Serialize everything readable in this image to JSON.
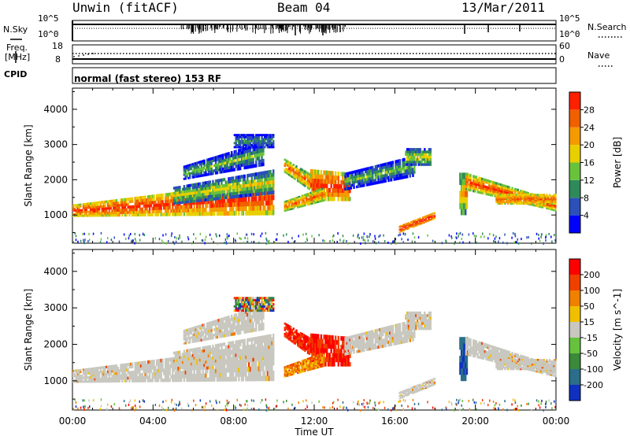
{
  "header": {
    "station": "Unwin (fitACF)",
    "beam": "Beam 04",
    "date": "13/Mar/2011"
  },
  "noise_panel": {
    "left_label": "N.Sky",
    "left_ticks": [
      "10^5",
      "10^0"
    ],
    "right_ticks": [
      "10^5",
      "10^0"
    ],
    "right_label": "N.Search"
  },
  "freq_panel": {
    "left_label_1": "Freq.",
    "left_label_2": "[MHz]",
    "left_ticks": [
      "18",
      "8"
    ],
    "right_ticks": [
      "60",
      "0"
    ],
    "right_label": "Nave"
  },
  "cpid_panel": {
    "label": "CPID",
    "text": "normal (fast stereo) 153 RF"
  },
  "chart_data": [
    {
      "type": "heatmap",
      "quantity": "Power",
      "ylabel": "Slant Range [km]",
      "xlabel": "",
      "x_range_hours": [
        0,
        24
      ],
      "ylim": [
        200,
        4600
      ],
      "yticks": [
        1000,
        2000,
        3000,
        4000
      ],
      "colorbar": {
        "label": "Power [dB]",
        "ticks": [
          "4",
          "8",
          "12",
          "16",
          "20",
          "24",
          "28"
        ],
        "colors": [
          "#0000ff",
          "#2b50b8",
          "#2f8a5a",
          "#69c23c",
          "#e8d000",
          "#f59a00",
          "#f06000",
          "#ff2000"
        ]
      }
    },
    {
      "type": "heatmap",
      "quantity": "Velocity",
      "ylabel": "Slant Range [km]",
      "xlabel": "Time UT",
      "x_range_hours": [
        0,
        24
      ],
      "xticks": [
        "00:00",
        "04:00",
        "08:00",
        "12:00",
        "16:00",
        "20:00",
        "00:00"
      ],
      "ylim": [
        200,
        4600
      ],
      "yticks": [
        1000,
        2000,
        3000,
        4000
      ],
      "colorbar": {
        "label": "Velocity [m s^-1]",
        "ticks": [
          "200",
          "100",
          "50",
          "15",
          "-15",
          "-50",
          "-100",
          "-200"
        ],
        "colors": [
          "#1030c0",
          "#2a6e8a",
          "#3a8a3a",
          "#66c23c",
          "#c8c8c0",
          "#f0c000",
          "#f08000",
          "#f04000",
          "#ff0000"
        ]
      }
    }
  ]
}
